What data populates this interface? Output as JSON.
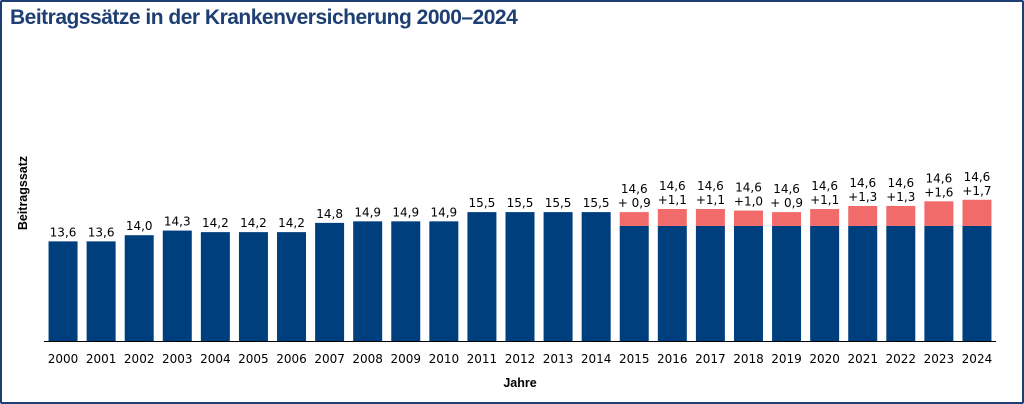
{
  "title": "Beitragssätze in der Krankenversicherung 2000–2024",
  "colors": {
    "base": "#003f7d",
    "extra": "#f26b6b",
    "title": "#1e3f73"
  },
  "chart_data": {
    "type": "bar",
    "stacked": true,
    "xlabel": "Jahre",
    "ylabel": "Beitragssatz",
    "ylim": [
      0,
      16.5
    ],
    "grid": false,
    "categories": [
      "2000",
      "2001",
      "2002",
      "2003",
      "2004",
      "2005",
      "2006",
      "2007",
      "2008",
      "2009",
      "2010",
      "2011",
      "2012",
      "2013",
      "2014",
      "2015",
      "2016",
      "2017",
      "2018",
      "2019",
      "2020",
      "2021",
      "2022",
      "2023",
      "2024"
    ],
    "series": [
      {
        "color": "#003f7d",
        "values": [
          13.6,
          13.6,
          14.0,
          14.3,
          14.2,
          14.2,
          14.2,
          14.8,
          14.9,
          14.9,
          14.9,
          15.5,
          15.5,
          15.5,
          15.5,
          14.6,
          14.6,
          14.6,
          14.6,
          14.6,
          14.6,
          14.6,
          14.6,
          14.6,
          14.6
        ],
        "labels": [
          "13,6",
          "13,6",
          "14,0",
          "14,3",
          "14,2",
          "14,2",
          "14,2",
          "14,8",
          "14,9",
          "14,9",
          "14,9",
          "15,5",
          "15,5",
          "15,5",
          "15,5",
          "14,6",
          "14,6",
          "14,6",
          "14,6",
          "14,6",
          "14,6",
          "14,6",
          "14,6",
          "14,6",
          "14,6"
        ]
      },
      {
        "color": "#f26b6b",
        "values": [
          null,
          null,
          null,
          null,
          null,
          null,
          null,
          null,
          null,
          null,
          null,
          null,
          null,
          null,
          null,
          0.9,
          1.1,
          1.1,
          1.0,
          0.9,
          1.1,
          1.3,
          1.3,
          1.6,
          1.7
        ],
        "labels": [
          "",
          "",
          "",
          "",
          "",
          "",
          "",
          "",
          "",
          "",
          "",
          "",
          "",
          "",
          "",
          "+ 0,9",
          "+1,1",
          "+1,1",
          "+1,0",
          "+ 0,9",
          "+1,1",
          "+1,3",
          "+1,3",
          "+1,6",
          "+1,7"
        ]
      }
    ]
  }
}
